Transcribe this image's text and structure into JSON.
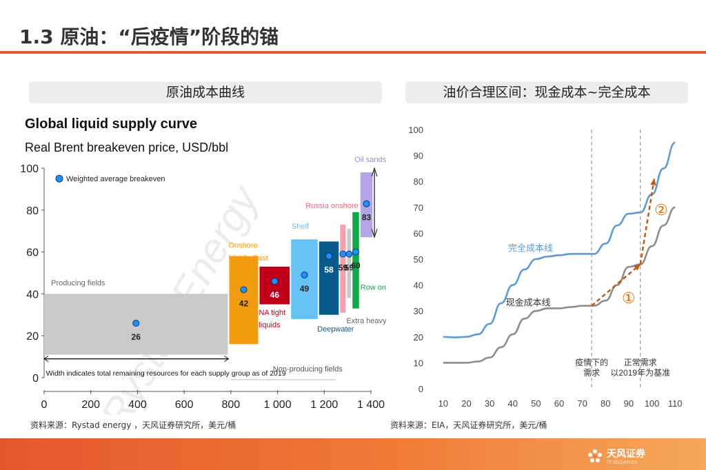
{
  "page": {
    "title": "1.3 原油：“后疫情”阶段的锚",
    "left_panel_title": "原油成本曲线",
    "right_panel_title": "油价合理区间：现金成本~完全成本",
    "left_source": "资料来源：Rystad energy ，天风证券研究所，美元/桶",
    "right_source": "资料来源：EIA，天风证券研究所，美元/桶",
    "logo_text": "天风证券",
    "logo_sub": "TF SECURITIES",
    "colors": {
      "accent": "#e4572e",
      "full_cost": "#5b9bd5",
      "cash_cost": "#8c8c8c",
      "arrow": "#c55a11"
    }
  },
  "chart_data": [
    {
      "type": "bar",
      "title": "Global liquid supply curve",
      "subtitle": "Real Brent breakeven price, USD/bbl",
      "legend": "Weighted average breakeven",
      "watermark": "Rystad Energy",
      "xlim": [
        0,
        1400
      ],
      "ylim": [
        0,
        100
      ],
      "xticks": [
        "0",
        "200",
        "400",
        "600",
        "800",
        "1 000",
        "1 200",
        "1 400"
      ],
      "yticks": [
        "0",
        "20",
        "40",
        "60",
        "80",
        "100"
      ],
      "width_note": "Width indicates total remaining resources for each supply group as of 2019",
      "non_producing_label": "Non-producing fields",
      "groups": [
        {
          "name": "Producing fields",
          "x0": 0,
          "x1": 790,
          "low": 11,
          "high": 40,
          "avg": 26,
          "color": "#c9c9c9"
        },
        {
          "name": "Onshore Middle East",
          "x0": 790,
          "x1": 920,
          "low": 16,
          "high": 58,
          "avg": 42,
          "color": "#f39c12"
        },
        {
          "name": "NA tight liquids",
          "x0": 920,
          "x1": 1055,
          "low": 35,
          "high": 53,
          "avg": 46,
          "color": "#c0001a"
        },
        {
          "name": "Shelf",
          "x0": 1055,
          "x1": 1175,
          "low": 28,
          "high": 66,
          "avg": 49,
          "color": "#66c2f2"
        },
        {
          "name": "Deepwater",
          "x0": 1175,
          "x1": 1265,
          "low": 30,
          "high": 65,
          "avg": 58,
          "color": "#0b5a8c"
        },
        {
          "name": "Russia onshore",
          "x0": 1265,
          "x1": 1295,
          "low": 31,
          "high": 73,
          "avg": 59,
          "color": "#f4a1ad"
        },
        {
          "name": "Extra heavy oil",
          "x0": 1295,
          "x1": 1318,
          "low": 38,
          "high": 71,
          "avg": 59,
          "color": "#c9c9c9"
        },
        {
          "name": "Row onshore",
          "x0": 1318,
          "x1": 1352,
          "low": 33,
          "high": 79,
          "avg": 60,
          "color": "#11a84a"
        },
        {
          "name": "Oil sands",
          "x0": 1352,
          "x1": 1410,
          "low": 67,
          "high": 98,
          "avg": 83,
          "color": "#b4a6e6"
        }
      ],
      "value_labels": [
        "26",
        "42",
        "46",
        "49",
        "58",
        "59",
        "59",
        "60",
        "83"
      ]
    },
    {
      "type": "line",
      "xlim": [
        5,
        115
      ],
      "ylim": [
        0,
        100
      ],
      "xticks": [
        "10",
        "20",
        "30",
        "40",
        "50",
        "60",
        "70",
        "80",
        "90",
        "100",
        "110"
      ],
      "yticks": [
        "0",
        "10",
        "20",
        "30",
        "40",
        "50",
        "60",
        "70",
        "80",
        "90",
        "100"
      ],
      "series": [
        {
          "name": "完全成本线",
          "x": [
            10,
            15,
            20,
            25,
            30,
            35,
            40,
            45,
            50,
            55,
            60,
            65,
            70,
            75,
            80,
            85,
            90,
            95,
            100,
            105,
            110
          ],
          "y": [
            20,
            19.8,
            20,
            21,
            25,
            33,
            40,
            46,
            50,
            51,
            51.5,
            52,
            52,
            52,
            56,
            63,
            67.5,
            68,
            75,
            85,
            95
          ]
        },
        {
          "name": "现金成本线",
          "x": [
            10,
            15,
            20,
            25,
            30,
            35,
            40,
            45,
            50,
            55,
            60,
            65,
            70,
            75,
            80,
            85,
            90,
            95,
            100,
            105,
            110
          ],
          "y": [
            10,
            10,
            10,
            10.5,
            12,
            16,
            21,
            27,
            30,
            31,
            31,
            31.5,
            32,
            32,
            34,
            40,
            47,
            48,
            55,
            63,
            70
          ]
        }
      ],
      "vlines": [
        {
          "x": 74,
          "label1": "疫情下的",
          "label2": "需求"
        },
        {
          "x": 95,
          "label1": "正常需求",
          "label2": "以2019年为基准"
        }
      ],
      "arrows": [
        {
          "label": "①",
          "x0": 74,
          "y0": 32,
          "x1": 95,
          "y1": 48
        },
        {
          "label": "②",
          "x0": 95,
          "y0": 48,
          "x1": 101,
          "y1": 81
        }
      ]
    }
  ]
}
